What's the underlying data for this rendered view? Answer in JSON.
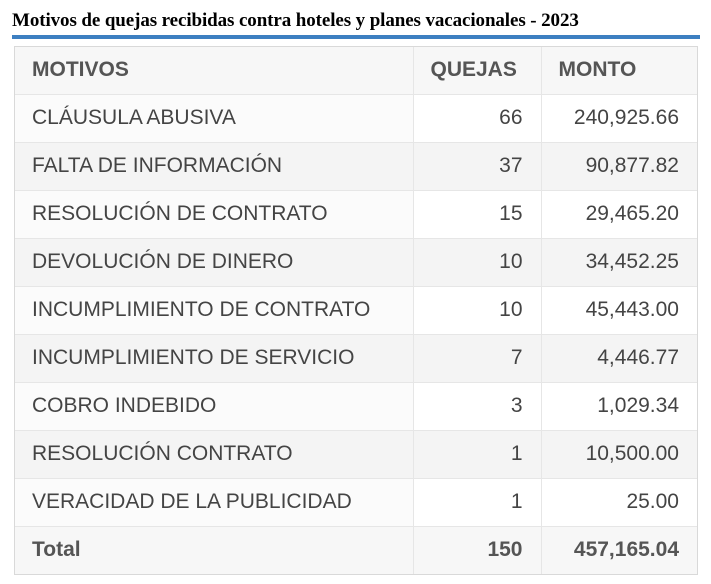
{
  "title": "Motivos de quejas recibidas contra hoteles y planes vacacionales - 2023",
  "table": {
    "headers": [
      "MOTIVOS",
      "QUEJAS",
      "MONTO"
    ],
    "rows": [
      {
        "motivo": "CLÁUSULA ABUSIVA",
        "quejas": "66",
        "monto": "240,925.66"
      },
      {
        "motivo": "FALTA DE INFORMACIÓN",
        "quejas": "37",
        "monto": "90,877.82"
      },
      {
        "motivo": "RESOLUCIÓN DE CONTRATO",
        "quejas": "15",
        "monto": "29,465.20"
      },
      {
        "motivo": "DEVOLUCIÓN DE DINERO",
        "quejas": "10",
        "monto": "34,452.25"
      },
      {
        "motivo": "INCUMPLIMIENTO DE CONTRATO",
        "quejas": "10",
        "monto": "45,443.00"
      },
      {
        "motivo": "INCUMPLIMIENTO DE SERVICIO",
        "quejas": "7",
        "monto": "4,446.77"
      },
      {
        "motivo": "COBRO INDEBIDO",
        "quejas": "3",
        "monto": "1,029.34"
      },
      {
        "motivo": "RESOLUCIÓN CONTRATO",
        "quejas": "1",
        "monto": "10,500.00"
      },
      {
        "motivo": "VERACIDAD DE LA PUBLICIDAD",
        "quejas": "1",
        "monto": "25.00"
      }
    ],
    "total": {
      "label": "Total",
      "quejas": "150",
      "monto": "457,165.04"
    }
  },
  "colors": {
    "title_rule": "#3d7fc1",
    "text": "#444444",
    "header_text": "#555555",
    "border": "#e6e6e6"
  }
}
